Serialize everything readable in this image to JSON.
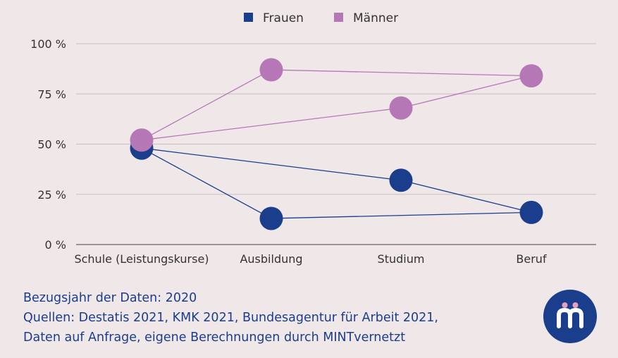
{
  "chart_data": {
    "type": "line",
    "categories": [
      "Schule (Leistungskurse)",
      "Ausbildung",
      "Studium",
      "Beruf"
    ],
    "y_ticks": [
      "0 %",
      "25 %",
      "50 %",
      "75 %",
      "100 %"
    ],
    "ylim": [
      0,
      100
    ],
    "grid": true,
    "legend_position": "top-center",
    "series": [
      {
        "name": "Frauen",
        "color": "#1a3e8c",
        "values": [
          48,
          13,
          32,
          16
        ]
      },
      {
        "name": "Männer",
        "color": "#b577b5",
        "values": [
          52,
          87,
          68,
          84
        ]
      }
    ],
    "connections": [
      [
        0,
        1
      ],
      [
        1,
        3
      ],
      [
        0,
        2
      ],
      [
        2,
        3
      ]
    ]
  },
  "footer": {
    "line1": "Bezugsjahr der Daten: 2020",
    "line2": "Quellen: Destatis 2021, KMK 2021, Bundesagentur für Arbeit 2021,",
    "line3": "Daten auf Anfrage, eigene Berechnungen durch MINTvernetzt"
  },
  "logo": {
    "icon": "mintvernetzt-logo-icon",
    "color": "#1a3e8c",
    "accent": "#e8a0c0"
  }
}
